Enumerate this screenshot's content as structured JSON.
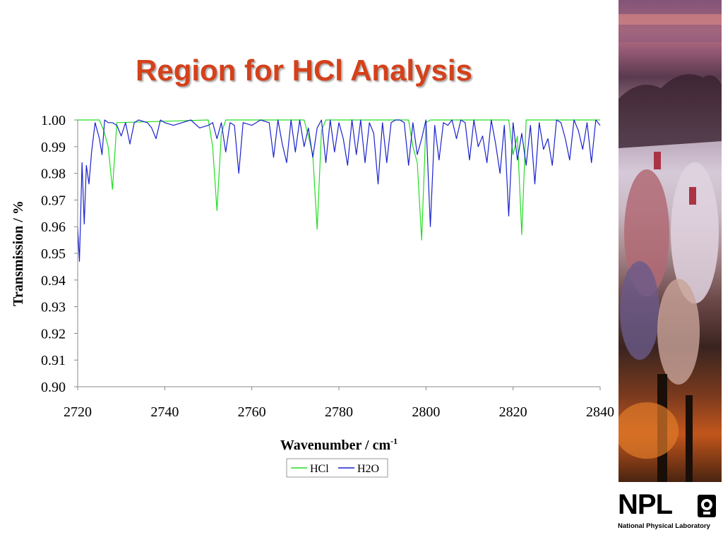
{
  "slide": {
    "title": "Region for HCl Analysis",
    "logo_text": "NPL",
    "logo_subtitle": "National Physical Laboratory"
  },
  "colors": {
    "title": "#d4411b",
    "hcl": "#22dd22",
    "h2o": "#1a22cc"
  },
  "chart_data": {
    "type": "line",
    "title": "",
    "xlabel": "Wavenumber / cm",
    "xlabel_superscript": "-1",
    "ylabel": "Transmission / %",
    "xlim": [
      2720,
      2840
    ],
    "ylim": [
      0.9,
      1.0
    ],
    "x_ticks": [
      "2720",
      "2740",
      "2760",
      "2780",
      "2800",
      "2820",
      "2840"
    ],
    "y_ticks": [
      "1.00",
      "0.99",
      "0.98",
      "0.97",
      "0.96",
      "0.95",
      "0.94",
      "0.93",
      "0.92",
      "0.91",
      "0.90"
    ],
    "grid": false,
    "legend_position": "bottom",
    "series": [
      {
        "name": "HCl",
        "color": "#22dd22",
        "x": [
          2720,
          2725,
          2726,
          2727,
          2728,
          2729,
          2750,
          2751,
          2752,
          2753,
          2754,
          2772,
          2773,
          2774,
          2775,
          2776,
          2777,
          2796,
          2797,
          2798,
          2799,
          2800,
          2801,
          2819,
          2820,
          2821,
          2822,
          2823,
          2840
        ],
        "y": [
          1.0,
          1.0,
          0.996,
          0.99,
          0.974,
          0.999,
          1.0,
          0.99,
          0.966,
          0.995,
          1.0,
          1.0,
          0.994,
          0.987,
          0.959,
          0.996,
          1.0,
          1.0,
          0.99,
          0.984,
          0.955,
          0.999,
          1.0,
          1.0,
          0.987,
          0.994,
          0.957,
          1.0,
          1.0
        ]
      },
      {
        "name": "H2O",
        "color": "#1a22cc",
        "x": [
          2720,
          2720.4,
          2721,
          2721.5,
          2722,
          2722.6,
          2723.2,
          2724,
          2725,
          2725.6,
          2726.2,
          2727,
          2728,
          2729,
          2730,
          2731,
          2732,
          2733,
          2734,
          2736,
          2737,
          2738,
          2739,
          2740,
          2742,
          2744,
          2746,
          2748,
          2750,
          2751,
          2752,
          2753,
          2754,
          2755,
          2756,
          2757,
          2758,
          2760,
          2762,
          2764,
          2765,
          2766,
          2767,
          2768,
          2769,
          2770,
          2771,
          2772,
          2773,
          2774,
          2775,
          2776,
          2777,
          2778,
          2779,
          2780,
          2781,
          2782,
          2783,
          2784,
          2785,
          2786,
          2787,
          2788,
          2789,
          2790,
          2791,
          2792,
          2793,
          2794,
          2795,
          2796,
          2797,
          2798,
          2799,
          2800,
          2801,
          2802,
          2803,
          2804,
          2805,
          2806,
          2807,
          2808,
          2809,
          2810,
          2811,
          2812,
          2813,
          2814,
          2815,
          2816,
          2817,
          2818,
          2819,
          2820,
          2821,
          2822,
          2823,
          2824,
          2825,
          2826,
          2827,
          2828,
          2829,
          2830,
          2831,
          2832,
          2833,
          2834,
          2835,
          2836,
          2837,
          2838,
          2839,
          2840
        ],
        "y": [
          0.96,
          0.947,
          0.984,
          0.961,
          0.983,
          0.976,
          0.988,
          0.999,
          0.993,
          0.987,
          1.0,
          0.999,
          0.999,
          0.998,
          0.994,
          0.999,
          0.991,
          0.999,
          1.0,
          0.999,
          0.997,
          0.993,
          1.0,
          0.999,
          0.998,
          0.999,
          1.0,
          0.997,
          0.998,
          0.999,
          0.993,
          0.999,
          0.988,
          0.999,
          0.998,
          0.98,
          0.999,
          0.998,
          1.0,
          0.999,
          0.986,
          1.0,
          0.991,
          0.984,
          1.0,
          0.988,
          1.0,
          0.99,
          0.997,
          0.986,
          0.997,
          1.0,
          0.984,
          1.0,
          0.988,
          0.999,
          0.993,
          0.983,
          1.0,
          0.987,
          1.0,
          0.984,
          0.999,
          0.995,
          0.976,
          0.999,
          0.984,
          0.999,
          1.0,
          1.0,
          0.999,
          0.983,
          0.999,
          0.987,
          0.993,
          1.0,
          0.96,
          0.998,
          0.985,
          0.999,
          0.998,
          1.0,
          0.993,
          1.0,
          0.999,
          0.985,
          1.0,
          0.99,
          0.994,
          0.984,
          1.0,
          0.991,
          0.98,
          0.998,
          0.964,
          0.999,
          0.985,
          0.995,
          0.983,
          0.998,
          0.976,
          0.999,
          0.989,
          0.993,
          0.983,
          1.0,
          0.999,
          0.993,
          0.985,
          1.0,
          0.996,
          0.989,
          0.999,
          0.984,
          1.0,
          0.998
        ]
      }
    ]
  }
}
